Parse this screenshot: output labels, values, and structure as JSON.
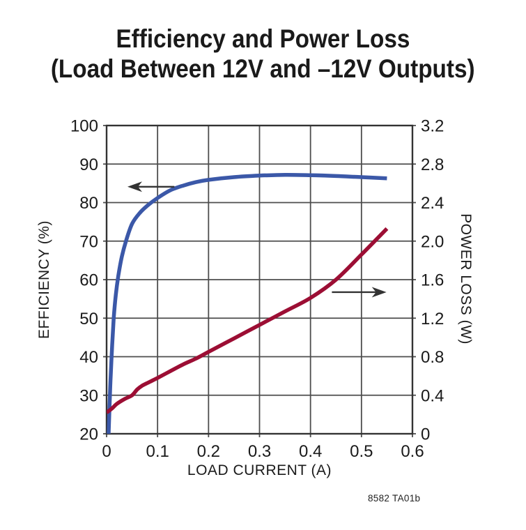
{
  "title": {
    "line1": "Efficiency and Power Loss",
    "line2": "(Load Between 12V and –12V Outputs)"
  },
  "caption": "8582 TA01b",
  "chart_data": {
    "type": "line",
    "title": "Efficiency and Power Loss (Load Between 12V and –12V Outputs)",
    "xlabel": "LOAD CURRENT (A)",
    "ylabel_left": "EFFICIENCY (%)",
    "ylabel_right": "POWER LOSS (W)",
    "xlim": [
      0,
      0.6
    ],
    "ylim_left": [
      20,
      100
    ],
    "ylim_right": [
      0,
      3.2
    ],
    "grid": true,
    "legend": "none",
    "x_tick_values": [
      0,
      0.1,
      0.2,
      0.3,
      0.4,
      0.5,
      0.6
    ],
    "x_tick_labels": [
      "0",
      "0.1",
      "0.2",
      "0.3",
      "0.4",
      "0.5",
      "0.6"
    ],
    "y_tick_values_left": [
      100,
      90,
      80,
      70,
      60,
      50,
      40,
      30,
      20
    ],
    "y_tick_labels_left": [
      "100",
      "90",
      "80",
      "70",
      "60",
      "50",
      "40",
      "30",
      "20"
    ],
    "y_tick_values_right": [
      3.2,
      2.8,
      2.4,
      2.0,
      1.6,
      1.2,
      0.8,
      0.4,
      0
    ],
    "y_tick_labels_right": [
      "3.2",
      "2.8",
      "2.4",
      "2.0",
      "1.6",
      "1.2",
      "0.8",
      "0.4",
      "0"
    ],
    "series": [
      {
        "name": "Efficiency",
        "axis": "left",
        "color": "#3b58a8",
        "x": [
          0.004,
          0.006,
          0.008,
          0.011,
          0.014,
          0.018,
          0.023,
          0.03,
          0.038,
          0.05,
          0.065,
          0.08,
          0.1,
          0.125,
          0.15,
          0.175,
          0.2,
          0.25,
          0.3,
          0.35,
          0.4,
          0.45,
          0.5,
          0.55
        ],
        "y": [
          20,
          28,
          35,
          43,
          50,
          56,
          61,
          66,
          70,
          74.5,
          77.3,
          79.2,
          81.2,
          83.2,
          84.4,
          85.3,
          85.9,
          86.6,
          87.0,
          87.2,
          87.1,
          86.9,
          86.6,
          86.3
        ]
      },
      {
        "name": "Power Loss",
        "axis": "right",
        "color": "#9c0e34",
        "x": [
          0,
          0.01,
          0.02,
          0.035,
          0.05,
          0.06,
          0.07,
          0.085,
          0.1,
          0.125,
          0.15,
          0.175,
          0.2,
          0.25,
          0.3,
          0.35,
          0.4,
          0.45,
          0.5,
          0.55
        ],
        "y": [
          0.22,
          0.26,
          0.31,
          0.36,
          0.4,
          0.46,
          0.5,
          0.54,
          0.58,
          0.65,
          0.72,
          0.78,
          0.85,
          0.99,
          1.13,
          1.27,
          1.41,
          1.6,
          1.86,
          2.13
        ]
      }
    ],
    "annotations": [
      {
        "name": "efficiency-arrow",
        "type": "arrow",
        "direction": "left",
        "axis": "left",
        "value": 84.1,
        "x_start": 0.133,
        "x_end": 0.041
      },
      {
        "name": "power-loss-arrow",
        "type": "arrow",
        "direction": "right",
        "axis": "right",
        "value": 1.47,
        "x_start": 0.442,
        "x_end": 0.549
      }
    ],
    "colors": {
      "grid": "#4d4d4d",
      "axis_border": "#333333",
      "text": "#1a1a1a",
      "arrow": "#333333",
      "background": "#ffffff"
    }
  }
}
